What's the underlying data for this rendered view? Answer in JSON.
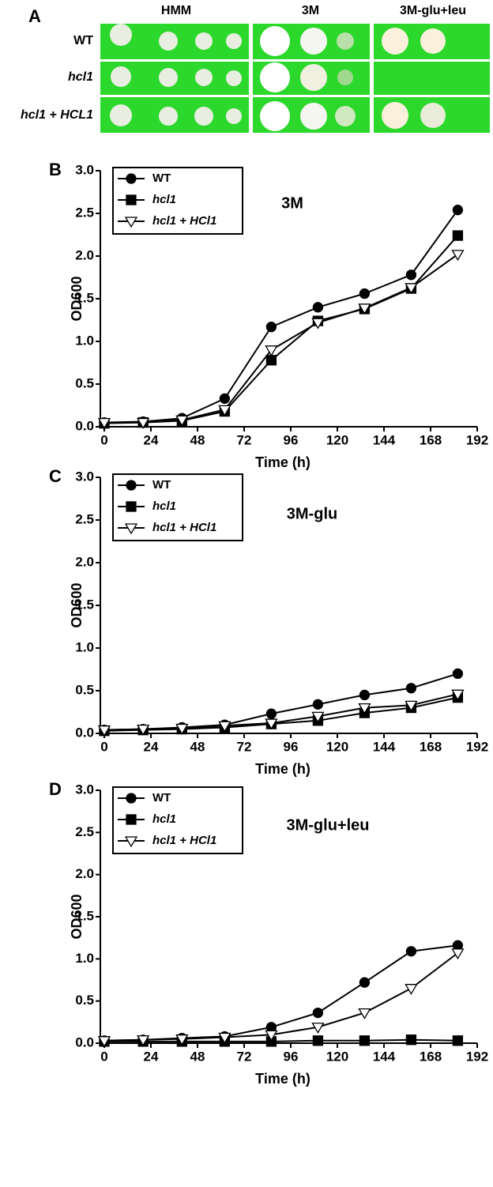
{
  "panel_a": {
    "label": "A",
    "columns": [
      "HMM",
      "3M",
      "3M-glu+leu"
    ],
    "rows": [
      "WT",
      "hcl1",
      "hcl1 + HCL1"
    ]
  },
  "chart_data": [
    {
      "type": "line",
      "label": "B",
      "title": "3M",
      "x_label": "Time (h)",
      "y_label": "OD600",
      "x": [
        0,
        20,
        40,
        62,
        86,
        110,
        134,
        158,
        182
      ],
      "xlim": [
        0,
        192
      ],
      "xticks": [
        0,
        24,
        48,
        72,
        96,
        120,
        144,
        168,
        192
      ],
      "ylim": [
        0,
        3
      ],
      "yticks": [
        {
          "value": 0,
          "label": "0.0"
        },
        0.5,
        {
          "value": 1,
          "label": "1.0"
        },
        1.5,
        {
          "value": 2,
          "label": "2.0"
        },
        2.5,
        {
          "value": 3,
          "label": "3.0"
        }
      ],
      "series": [
        {
          "name": "WT",
          "color": "#000000",
          "marker": "circle",
          "values": [
            0.05,
            0.06,
            0.1,
            0.33,
            1.17,
            1.4,
            1.56,
            1.78,
            2.54
          ]
        },
        {
          "name": "hcl1",
          "color": "#000000",
          "marker": "square",
          "values": [
            0.04,
            0.05,
            0.07,
            0.18,
            0.78,
            1.24,
            1.38,
            1.62,
            2.24
          ]
        },
        {
          "name": "hcl1 + HCl1",
          "color": "#000000",
          "marker": "triangle-down",
          "values": [
            0.05,
            0.05,
            0.08,
            0.2,
            0.9,
            1.22,
            1.39,
            1.63,
            2.02
          ]
        }
      ]
    },
    {
      "type": "line",
      "label": "C",
      "title": "3M-glu",
      "x_label": "Time (h)",
      "y_label": "OD600",
      "x": [
        0,
        20,
        40,
        62,
        86,
        110,
        134,
        158,
        182
      ],
      "xlim": [
        0,
        192
      ],
      "xticks": [
        0,
        24,
        48,
        72,
        96,
        120,
        144,
        168,
        192
      ],
      "ylim": [
        0,
        3
      ],
      "yticks": [
        {
          "value": 0,
          "label": "0.0"
        },
        0.5,
        {
          "value": 1,
          "label": "1.0"
        },
        1.5,
        {
          "value": 2,
          "label": "2.0"
        },
        2.5,
        {
          "value": 3,
          "label": "3.0"
        }
      ],
      "series": [
        {
          "name": "WT",
          "color": "#000000",
          "marker": "circle",
          "values": [
            0.04,
            0.05,
            0.07,
            0.1,
            0.23,
            0.34,
            0.45,
            0.53,
            0.7
          ]
        },
        {
          "name": "hcl1",
          "color": "#000000",
          "marker": "square",
          "values": [
            0.03,
            0.04,
            0.05,
            0.07,
            0.11,
            0.15,
            0.24,
            0.3,
            0.42
          ]
        },
        {
          "name": "hcl1 + HCl1",
          "color": "#000000",
          "marker": "triangle-down",
          "values": [
            0.04,
            0.05,
            0.06,
            0.09,
            0.12,
            0.2,
            0.3,
            0.33,
            0.46
          ]
        }
      ]
    },
    {
      "type": "line",
      "label": "D",
      "title": "3M-glu+leu",
      "x_label": "Time (h)",
      "y_label": "OD600",
      "x": [
        0,
        20,
        40,
        62,
        86,
        110,
        134,
        158,
        182
      ],
      "xlim": [
        0,
        192
      ],
      "xticks": [
        0,
        24,
        48,
        72,
        96,
        120,
        144,
        168,
        192
      ],
      "ylim": [
        0,
        3
      ],
      "yticks": [
        {
          "value": 0,
          "label": "0.0"
        },
        0.5,
        {
          "value": 1,
          "label": "1.0"
        },
        1.5,
        {
          "value": 2,
          "label": "2.0"
        },
        2.5,
        {
          "value": 3,
          "label": "3.0"
        }
      ],
      "series": [
        {
          "name": "WT",
          "color": "#000000",
          "marker": "circle",
          "values": [
            0.03,
            0.04,
            0.06,
            0.08,
            0.19,
            0.36,
            0.72,
            1.09,
            1.16
          ]
        },
        {
          "name": "hcl1",
          "color": "#000000",
          "marker": "square",
          "values": [
            0.02,
            0.02,
            0.02,
            0.02,
            0.02,
            0.03,
            0.03,
            0.04,
            0.03
          ]
        },
        {
          "name": "hcl1 + HCl1",
          "color": "#000000",
          "marker": "triangle-down",
          "values": [
            0.03,
            0.04,
            0.05,
            0.07,
            0.1,
            0.19,
            0.36,
            0.65,
            1.07
          ]
        }
      ]
    }
  ]
}
